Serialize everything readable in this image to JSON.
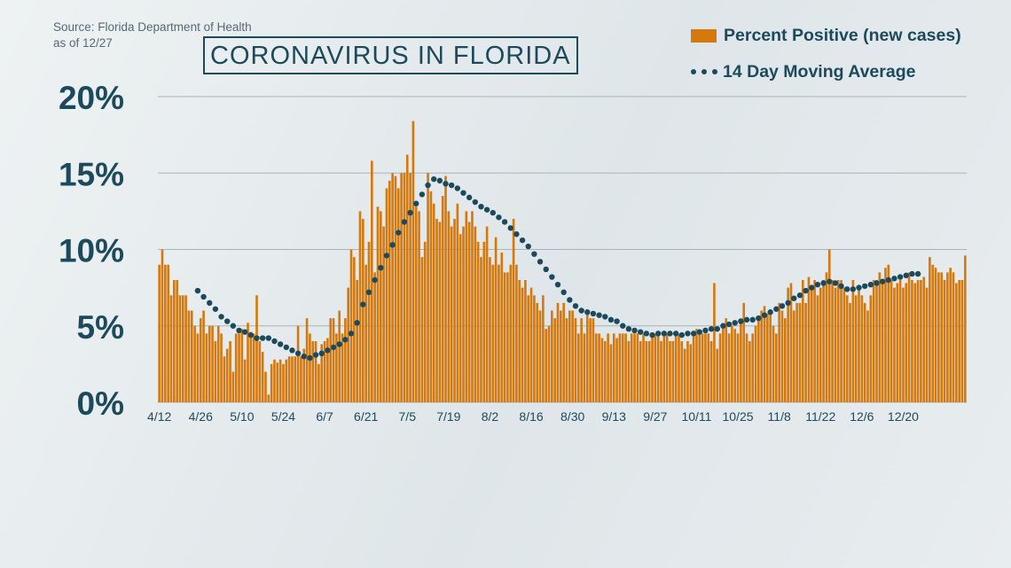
{
  "source_line1": "Source: Florida Department of Health",
  "source_line2": "as of 12/27",
  "colors": {
    "bar": "#d5790f",
    "line": "#1c4a5c",
    "grid": "#a9b3b7",
    "text": "#1c4a5c"
  },
  "chart_data": {
    "type": "bar",
    "title": "CORONAVIRUS IN FLORIDA",
    "xlabel": "",
    "ylabel": "",
    "ylim": [
      0,
      20
    ],
    "y_ticks": [
      0,
      5,
      10,
      15,
      20
    ],
    "y_tick_labels": [
      "0%",
      "5%",
      "10%",
      "15%",
      "20%"
    ],
    "x_tick_labels": [
      "4/12",
      "4/26",
      "5/10",
      "5/24",
      "6/7",
      "6/21",
      "7/5",
      "7/19",
      "8/2",
      "8/16",
      "8/30",
      "9/13",
      "9/27",
      "10/11",
      "10/25",
      "11/8",
      "11/22",
      "12/6",
      "12/20"
    ],
    "x_start": "4/12",
    "grid": true,
    "legend_position": "top-right",
    "series": [
      {
        "name": "Percent Positive (new cases)",
        "type": "bar",
        "values": [
          9.0,
          10.0,
          9.0,
          9.0,
          7.0,
          8.0,
          8.0,
          7.0,
          7.0,
          7.0,
          6.0,
          6.0,
          5.0,
          4.5,
          5.5,
          6.0,
          4.5,
          5.0,
          5.0,
          4.0,
          5.0,
          4.5,
          3.0,
          3.5,
          4.0,
          2.0,
          4.5,
          4.5,
          4.8,
          2.8,
          5.2,
          4.6,
          4.5,
          7.0,
          4.0,
          3.3,
          2.0,
          0.5,
          2.5,
          2.8,
          2.6,
          2.8,
          2.5,
          2.8,
          3.0,
          3.0,
          3.0,
          5.0,
          3.0,
          3.5,
          5.5,
          4.5,
          4.0,
          4.0,
          2.5,
          3.8,
          4.0,
          4.2,
          5.5,
          5.5,
          4.5,
          6.0,
          4.5,
          5.5,
          7.5,
          10.0,
          9.5,
          8.0,
          12.5,
          12.0,
          9.0,
          10.5,
          15.8,
          8.5,
          12.8,
          12.5,
          11.5,
          14.0,
          14.5,
          15.0,
          14.8,
          14.0,
          15.0,
          15.0,
          16.2,
          15.0,
          18.4,
          12.8,
          12.5,
          9.5,
          10.5,
          15.0,
          13.8,
          13.0,
          12.0,
          11.8,
          13.5,
          14.8,
          12.5,
          11.5,
          12.0,
          13.0,
          11.0,
          11.5,
          12.5,
          11.8,
          12.5,
          11.5,
          10.5,
          9.5,
          10.5,
          11.5,
          9.5,
          9.0,
          10.8,
          9.0,
          9.8,
          8.5,
          8.5,
          9.0,
          12.0,
          9.0,
          8.0,
          7.5,
          8.0,
          7.0,
          7.5,
          7.0,
          6.5,
          6.0,
          7.0,
          4.8,
          5.0,
          6.0,
          5.5,
          6.5,
          6.0,
          6.5,
          5.5,
          6.0,
          6.0,
          5.5,
          4.5,
          5.5,
          4.5,
          6.0,
          5.5,
          5.5,
          4.5,
          4.5,
          4.2,
          4.0,
          4.5,
          3.8,
          4.5,
          4.2,
          4.5,
          4.5,
          4.5,
          4.0,
          4.5,
          4.5,
          4.5,
          4.0,
          4.5,
          4.0,
          4.0,
          4.5,
          4.5,
          4.5,
          4.0,
          4.5,
          4.5,
          4.0,
          4.0,
          4.5,
          4.5,
          4.0,
          3.5,
          4.0,
          3.8,
          4.5,
          4.8,
          4.5,
          4.5,
          4.5,
          4.5,
          4.0,
          7.8,
          3.5,
          4.5,
          5.0,
          5.5,
          4.5,
          5.0,
          4.8,
          4.5,
          5.5,
          6.5,
          4.5,
          4.0,
          4.5,
          5.0,
          5.5,
          6.0,
          6.3,
          5.8,
          6.0,
          5.0,
          4.5,
          6.5,
          6.0,
          5.5,
          7.5,
          7.8,
          6.0,
          6.5,
          6.5,
          8.0,
          6.5,
          8.2,
          7.5,
          8.0,
          7.0,
          7.5,
          8.0,
          8.5,
          10.0,
          8.0,
          7.5,
          8.0,
          8.0,
          7.5,
          7.0,
          6.5,
          8.0,
          7.0,
          7.5,
          7.0,
          6.5,
          6.0,
          7.0,
          8.0,
          8.0,
          8.5,
          8.0,
          8.8,
          9.0,
          8.0,
          7.5,
          7.8,
          8.0,
          7.5,
          7.8,
          8.5,
          8.0,
          7.8,
          8.0,
          8.0,
          8.2,
          7.5,
          9.5,
          9.0,
          8.8,
          8.5,
          8.5,
          8.0,
          8.5,
          8.8,
          8.5,
          7.8,
          8.0,
          8.0,
          9.6
        ]
      },
      {
        "name": "14 Day Moving Average",
        "type": "dotted-line",
        "points": [
          [
            13,
            7.3
          ],
          [
            15,
            6.9
          ],
          [
            17,
            6.5
          ],
          [
            19,
            6.1
          ],
          [
            21,
            5.6
          ],
          [
            23,
            5.3
          ],
          [
            25,
            5.0
          ],
          [
            27,
            4.7
          ],
          [
            29,
            4.6
          ],
          [
            31,
            4.4
          ],
          [
            33,
            4.2
          ],
          [
            35,
            4.2
          ],
          [
            37,
            4.2
          ],
          [
            39,
            4.0
          ],
          [
            41,
            3.8
          ],
          [
            43,
            3.6
          ],
          [
            45,
            3.4
          ],
          [
            47,
            3.2
          ],
          [
            49,
            3.0
          ],
          [
            51,
            2.9
          ],
          [
            53,
            3.1
          ],
          [
            55,
            3.2
          ],
          [
            57,
            3.4
          ],
          [
            59,
            3.6
          ],
          [
            61,
            3.8
          ],
          [
            63,
            4.1
          ],
          [
            65,
            4.5
          ],
          [
            67,
            5.2
          ],
          [
            69,
            6.4
          ],
          [
            71,
            7.2
          ],
          [
            73,
            8.0
          ],
          [
            75,
            8.8
          ],
          [
            77,
            9.6
          ],
          [
            79,
            10.3
          ],
          [
            81,
            11.1
          ],
          [
            83,
            11.8
          ],
          [
            85,
            12.4
          ],
          [
            87,
            13.0
          ],
          [
            89,
            13.6
          ],
          [
            91,
            14.2
          ],
          [
            93,
            14.6
          ],
          [
            95,
            14.5
          ],
          [
            97,
            14.3
          ],
          [
            99,
            14.2
          ],
          [
            101,
            14.0
          ],
          [
            103,
            13.7
          ],
          [
            105,
            13.4
          ],
          [
            107,
            13.1
          ],
          [
            109,
            12.8
          ],
          [
            111,
            12.6
          ],
          [
            113,
            12.4
          ],
          [
            115,
            12.1
          ],
          [
            117,
            11.8
          ],
          [
            119,
            11.4
          ],
          [
            121,
            11.0
          ],
          [
            123,
            10.6
          ],
          [
            125,
            10.2
          ],
          [
            127,
            9.7
          ],
          [
            129,
            9.2
          ],
          [
            131,
            8.7
          ],
          [
            133,
            8.2
          ],
          [
            135,
            7.7
          ],
          [
            137,
            7.2
          ],
          [
            139,
            6.7
          ],
          [
            141,
            6.3
          ],
          [
            143,
            6.0
          ],
          [
            145,
            5.9
          ],
          [
            147,
            5.8
          ],
          [
            149,
            5.7
          ],
          [
            151,
            5.6
          ],
          [
            153,
            5.4
          ],
          [
            155,
            5.3
          ],
          [
            157,
            5.0
          ],
          [
            159,
            4.8
          ],
          [
            161,
            4.7
          ],
          [
            163,
            4.6
          ],
          [
            165,
            4.5
          ],
          [
            167,
            4.4
          ],
          [
            169,
            4.5
          ],
          [
            171,
            4.5
          ],
          [
            173,
            4.5
          ],
          [
            175,
            4.5
          ],
          [
            177,
            4.4
          ],
          [
            179,
            4.5
          ],
          [
            181,
            4.5
          ],
          [
            183,
            4.6
          ],
          [
            185,
            4.7
          ],
          [
            187,
            4.8
          ],
          [
            189,
            4.8
          ],
          [
            191,
            5.0
          ],
          [
            193,
            5.1
          ],
          [
            195,
            5.2
          ],
          [
            197,
            5.3
          ],
          [
            199,
            5.4
          ],
          [
            201,
            5.4
          ],
          [
            203,
            5.5
          ],
          [
            205,
            5.7
          ],
          [
            207,
            5.9
          ],
          [
            209,
            6.1
          ],
          [
            211,
            6.3
          ],
          [
            213,
            6.5
          ],
          [
            215,
            6.8
          ],
          [
            217,
            7.0
          ],
          [
            219,
            7.3
          ],
          [
            221,
            7.5
          ],
          [
            223,
            7.7
          ],
          [
            225,
            7.8
          ],
          [
            227,
            7.9
          ],
          [
            229,
            7.8
          ],
          [
            231,
            7.6
          ],
          [
            233,
            7.4
          ],
          [
            235,
            7.4
          ],
          [
            237,
            7.5
          ],
          [
            239,
            7.6
          ],
          [
            241,
            7.7
          ],
          [
            243,
            7.8
          ],
          [
            245,
            7.9
          ],
          [
            247,
            8.0
          ],
          [
            249,
            8.1
          ],
          [
            251,
            8.2
          ],
          [
            253,
            8.3
          ],
          [
            255,
            8.4
          ],
          [
            257,
            8.4
          ]
        ]
      }
    ]
  }
}
